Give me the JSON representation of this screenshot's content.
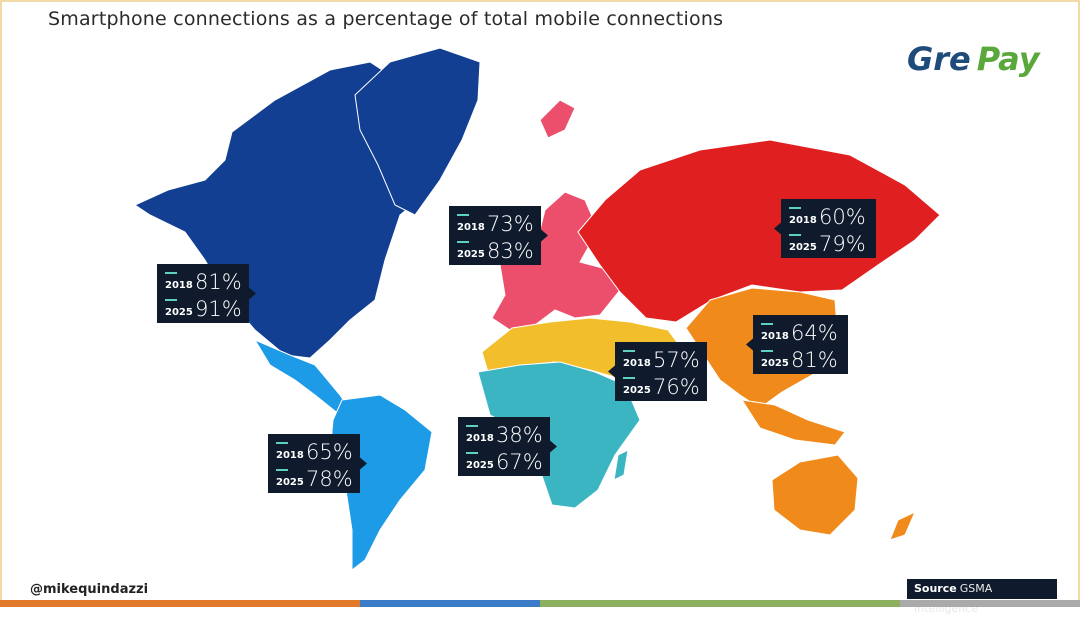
{
  "chart_data": {
    "type": "choropleth-map",
    "title": "Smartphone connections as a percentage of total mobile connections",
    "years": [
      "2018",
      "2025"
    ],
    "regions": [
      {
        "name": "North America",
        "color": "#123f92",
        "values": {
          "2018": "81%",
          "2025": "91%"
        }
      },
      {
        "name": "Latin America",
        "color": "#1d9be6",
        "values": {
          "2018": "65%",
          "2025": "78%"
        }
      },
      {
        "name": "Europe",
        "color": "#ec4f6c",
        "values": {
          "2018": "73%",
          "2025": "83%"
        }
      },
      {
        "name": "CIS",
        "color": "#e02020",
        "values": {
          "2018": "60%",
          "2025": "79%"
        }
      },
      {
        "name": "MENA",
        "color": "#f2be2c",
        "values": {
          "2018": "57%",
          "2025": "76%"
        }
      },
      {
        "name": "Sub-Saharan Africa",
        "color": "#3cb5c2",
        "values": {
          "2018": "38%",
          "2025": "67%"
        }
      },
      {
        "name": "Asia Pacific",
        "color": "#f08a1a",
        "values": {
          "2018": "64%",
          "2025": "81%"
        }
      }
    ]
  },
  "branding": {
    "logo_text": "GrePay",
    "logo_part1": "Gre",
    "logo_part2": "Pay"
  },
  "footer": {
    "handle": "@mikequindazzi",
    "source_label": "Source",
    "source_name": "GSMA Intelligence"
  },
  "colors": {
    "label_bg": "#0f1b2d",
    "label_text": "#ffffff",
    "accent_line": "#5fd0c4",
    "bottom_bar": [
      "#e07a2a",
      "#e07a2a",
      "#3a7bc8",
      "#8db060",
      "#8db060",
      "#aaaaaa"
    ]
  }
}
